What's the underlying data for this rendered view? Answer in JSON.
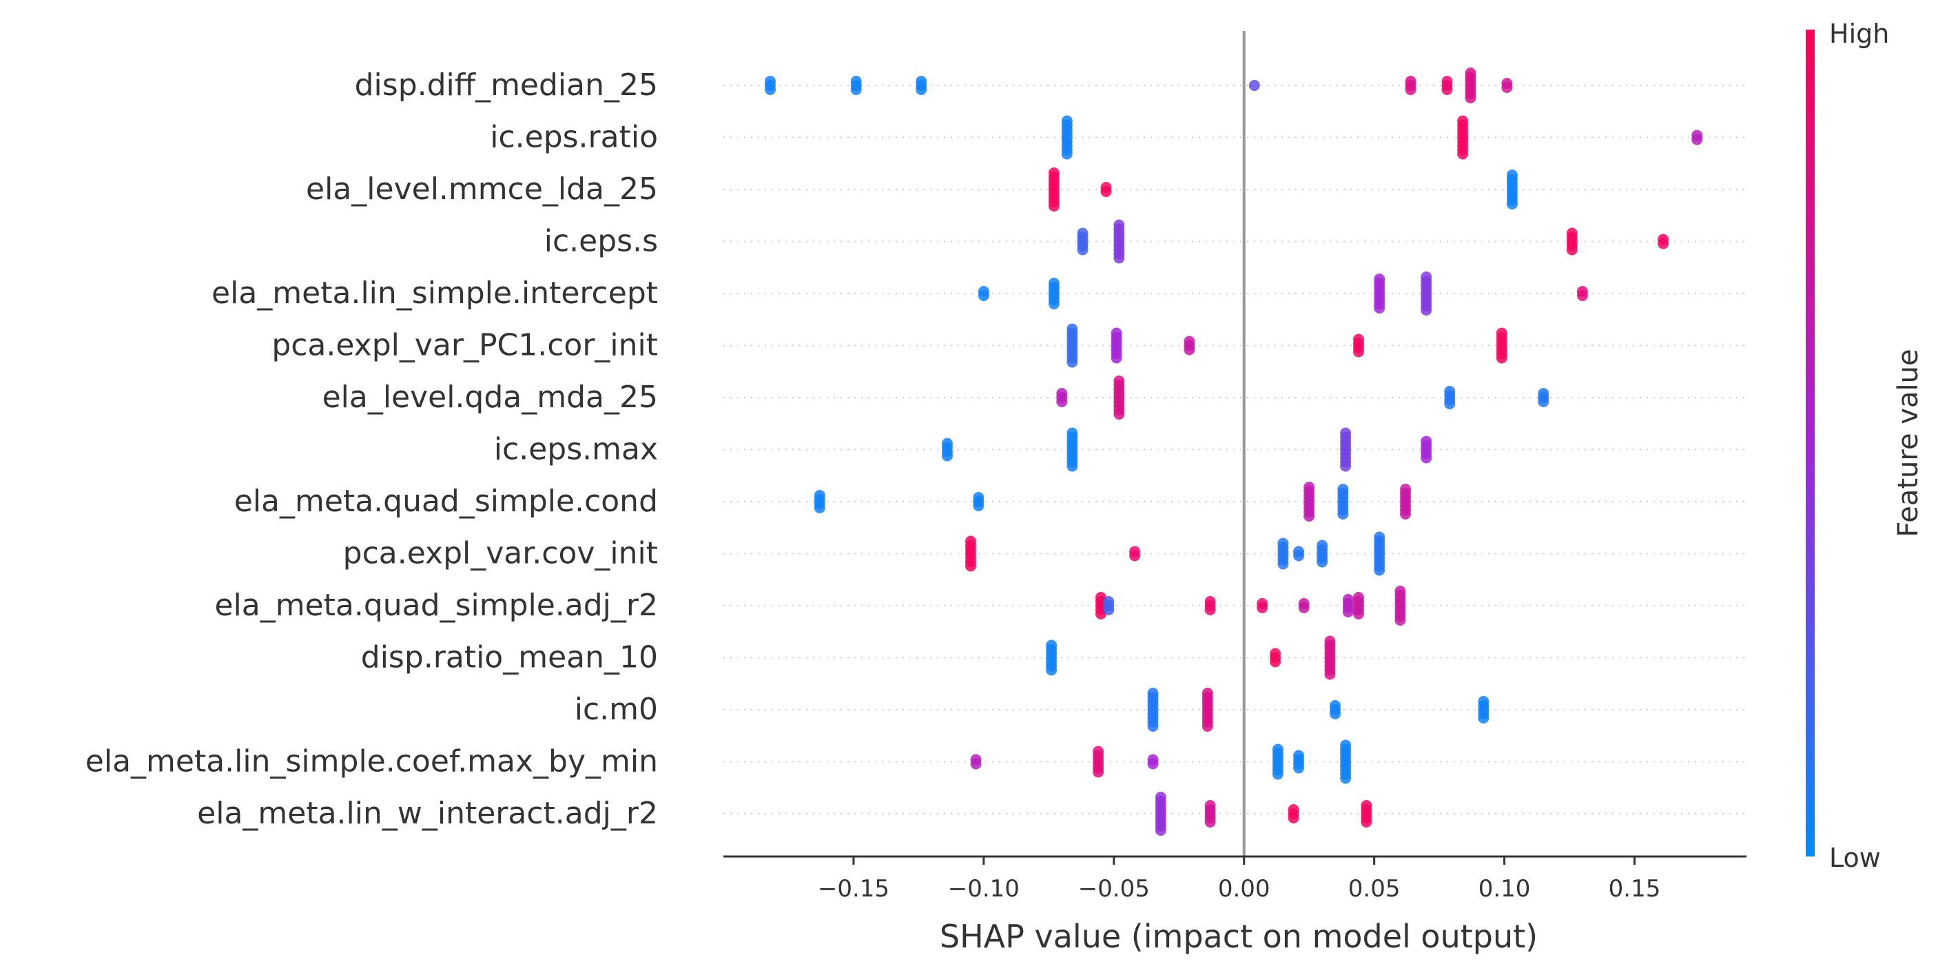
{
  "chart_data": {
    "type": "scatter",
    "subtype": "shap-beeswarm",
    "xlabel": "SHAP value (impact on model output)",
    "xlim": [
      -0.2,
      0.193
    ],
    "xticks": [
      -0.15,
      -0.1,
      -0.05,
      0.0,
      0.05,
      0.1,
      0.15
    ],
    "xtick_labels": [
      "−0.15",
      "−0.10",
      "−0.05",
      "0.00",
      "0.05",
      "0.10",
      "0.15"
    ],
    "zero_line": true,
    "colorbar": {
      "label": "Feature value",
      "high_label": "High",
      "low_label": "Low",
      "low_color": "#008bfb",
      "mid_color": "#a424d8",
      "high_color": "#ff0052"
    },
    "features": [
      {
        "name": "disp.diff_median_25",
        "points": [
          {
            "x": -0.182,
            "v": 0.05,
            "n": 3
          },
          {
            "x": -0.149,
            "v": 0.05,
            "n": 3
          },
          {
            "x": -0.124,
            "v": 0.05,
            "n": 3
          },
          {
            "x": 0.004,
            "v": 0.3,
            "n": 1
          },
          {
            "x": 0.064,
            "v": 0.8,
            "n": 3
          },
          {
            "x": 0.078,
            "v": 0.9,
            "n": 3
          },
          {
            "x": 0.087,
            "v": 0.8,
            "n": 7
          },
          {
            "x": 0.101,
            "v": 0.75,
            "n": 2
          }
        ]
      },
      {
        "name": "ic.eps.ratio",
        "points": [
          {
            "x": -0.068,
            "v": 0.05,
            "n": 9
          },
          {
            "x": 0.084,
            "v": 0.95,
            "n": 9
          },
          {
            "x": 0.174,
            "v": 0.6,
            "n": 2
          }
        ]
      },
      {
        "name": "ela_level.mmce_lda_25",
        "points": [
          {
            "x": -0.073,
            "v": 0.95,
            "n": 9
          },
          {
            "x": -0.053,
            "v": 0.95,
            "n": 2
          },
          {
            "x": 0.103,
            "v": 0.05,
            "n": 8
          }
        ]
      },
      {
        "name": "ic.eps.s",
        "points": [
          {
            "x": -0.062,
            "v": 0.2,
            "n": 5
          },
          {
            "x": -0.048,
            "v": 0.4,
            "n": 9
          },
          {
            "x": 0.126,
            "v": 0.95,
            "n": 5
          },
          {
            "x": 0.161,
            "v": 0.95,
            "n": 2
          }
        ]
      },
      {
        "name": "ela_meta.lin_simple.intercept",
        "points": [
          {
            "x": -0.1,
            "v": 0.05,
            "n": 2
          },
          {
            "x": -0.073,
            "v": 0.05,
            "n": 6
          },
          {
            "x": 0.052,
            "v": 0.5,
            "n": 8
          },
          {
            "x": 0.07,
            "v": 0.4,
            "n": 9
          },
          {
            "x": 0.13,
            "v": 0.85,
            "n": 2
          }
        ]
      },
      {
        "name": "pca.expl_var_PC1.cor_init",
        "points": [
          {
            "x": -0.066,
            "v": 0.15,
            "n": 9
          },
          {
            "x": -0.049,
            "v": 0.5,
            "n": 7
          },
          {
            "x": -0.021,
            "v": 0.7,
            "n": 3
          },
          {
            "x": 0.044,
            "v": 0.95,
            "n": 4
          },
          {
            "x": 0.099,
            "v": 0.95,
            "n": 7
          }
        ]
      },
      {
        "name": "ela_level.qda_mda_25",
        "points": [
          {
            "x": -0.07,
            "v": 0.6,
            "n": 3
          },
          {
            "x": -0.048,
            "v": 0.8,
            "n": 9
          },
          {
            "x": 0.079,
            "v": 0.1,
            "n": 4
          },
          {
            "x": 0.115,
            "v": 0.1,
            "n": 3
          }
        ]
      },
      {
        "name": "ic.eps.max",
        "points": [
          {
            "x": -0.114,
            "v": 0.05,
            "n": 4
          },
          {
            "x": -0.066,
            "v": 0.05,
            "n": 9
          },
          {
            "x": 0.039,
            "v": 0.35,
            "n": 9
          },
          {
            "x": 0.07,
            "v": 0.5,
            "n": 5
          }
        ]
      },
      {
        "name": "ela_meta.quad_simple.cond",
        "points": [
          {
            "x": -0.163,
            "v": 0.05,
            "n": 4
          },
          {
            "x": -0.102,
            "v": 0.05,
            "n": 3
          },
          {
            "x": 0.025,
            "v": 0.65,
            "n": 8
          },
          {
            "x": 0.038,
            "v": 0.1,
            "n": 7
          },
          {
            "x": 0.062,
            "v": 0.7,
            "n": 7
          }
        ]
      },
      {
        "name": "pca.expl_var.cov_init",
        "points": [
          {
            "x": -0.105,
            "v": 0.95,
            "n": 7
          },
          {
            "x": -0.042,
            "v": 0.9,
            "n": 2
          },
          {
            "x": 0.015,
            "v": 0.1,
            "n": 6
          },
          {
            "x": 0.021,
            "v": 0.1,
            "n": 2
          },
          {
            "x": 0.03,
            "v": 0.1,
            "n": 5
          },
          {
            "x": 0.052,
            "v": 0.1,
            "n": 9
          }
        ]
      },
      {
        "name": "ela_meta.quad_simple.adj_r2",
        "points": [
          {
            "x": -0.055,
            "v": 0.95,
            "n": 5
          },
          {
            "x": -0.052,
            "v": 0.2,
            "n": 3
          },
          {
            "x": -0.013,
            "v": 0.9,
            "n": 3
          },
          {
            "x": 0.007,
            "v": 0.9,
            "n": 2
          },
          {
            "x": 0.023,
            "v": 0.7,
            "n": 2
          },
          {
            "x": 0.04,
            "v": 0.6,
            "n": 4
          },
          {
            "x": 0.044,
            "v": 0.7,
            "n": 5
          },
          {
            "x": 0.06,
            "v": 0.7,
            "n": 8
          }
        ]
      },
      {
        "name": "disp.ratio_mean_10",
        "points": [
          {
            "x": -0.074,
            "v": 0.05,
            "n": 7
          },
          {
            "x": 0.012,
            "v": 0.95,
            "n": 3
          },
          {
            "x": 0.033,
            "v": 0.8,
            "n": 9
          }
        ]
      },
      {
        "name": "ic.m0",
        "points": [
          {
            "x": -0.035,
            "v": 0.1,
            "n": 9
          },
          {
            "x": -0.014,
            "v": 0.8,
            "n": 9
          },
          {
            "x": 0.035,
            "v": 0.05,
            "n": 3
          },
          {
            "x": 0.092,
            "v": 0.05,
            "n": 5
          }
        ]
      },
      {
        "name": "ela_meta.lin_simple.coef.max_by_min",
        "points": [
          {
            "x": -0.103,
            "v": 0.6,
            "n": 2
          },
          {
            "x": -0.056,
            "v": 0.85,
            "n": 6
          },
          {
            "x": -0.035,
            "v": 0.5,
            "n": 2
          },
          {
            "x": 0.013,
            "v": 0.05,
            "n": 7
          },
          {
            "x": 0.021,
            "v": 0.05,
            "n": 4
          },
          {
            "x": 0.039,
            "v": 0.05,
            "n": 9
          }
        ]
      },
      {
        "name": "ela_meta.lin_w_interact.adj_r2",
        "points": [
          {
            "x": -0.032,
            "v": 0.45,
            "n": 9
          },
          {
            "x": -0.013,
            "v": 0.75,
            "n": 5
          },
          {
            "x": 0.019,
            "v": 0.95,
            "n": 3
          },
          {
            "x": 0.047,
            "v": 0.95,
            "n": 5
          }
        ]
      }
    ]
  }
}
